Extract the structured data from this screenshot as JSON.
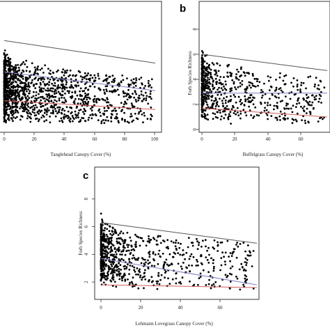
{
  "chart_data": [
    {
      "panel_label": "",
      "type": "scatter",
      "xlabel": "Tanglehead Canopy Cover (%)",
      "ylabel": "",
      "xlim": [
        0,
        100
      ],
      "ylim": [
        0,
        10
      ],
      "x_ticks": [
        "0",
        "20",
        "40",
        "60",
        "80",
        "100"
      ],
      "y_ticks": [],
      "point_count": 1400,
      "lines": [
        {
          "color": "#555555",
          "x": [
            0,
            100
          ],
          "y": [
            7.1,
            5.3
          ]
        },
        {
          "color": "#7c7cc4",
          "x": [
            0,
            100
          ],
          "y": [
            4.6,
            3.1
          ]
        },
        {
          "color": "#d05c5c",
          "x": [
            0,
            100
          ],
          "y": [
            2.3,
            1.6
          ]
        }
      ]
    },
    {
      "panel_label": "b",
      "type": "scatter",
      "xlabel": "Buffelgrass Canopy Cover (%)",
      "ylabel": "Forb Species Richness",
      "xlim": [
        0,
        70
      ],
      "ylim": [
        0,
        10
      ],
      "x_ticks": [
        "0",
        "20",
        "40",
        "60"
      ],
      "y_ticks": [
        "0",
        "2",
        "4",
        "6",
        "8"
      ],
      "point_count": 700,
      "lines": [
        {
          "color": "#555555",
          "x": [
            0,
            70
          ],
          "y": [
            6.0,
            4.7
          ]
        },
        {
          "color": "#7c7cc4",
          "x": [
            0,
            70
          ],
          "y": [
            2.9,
            2.9
          ]
        },
        {
          "color": "#d05c5c",
          "x": [
            0,
            70
          ],
          "y": [
            1.7,
            1.0
          ]
        }
      ]
    },
    {
      "panel_label": "c",
      "type": "scatter",
      "xlabel": "Lehmann Lovegrass Canopy Cover (%)",
      "ylabel": "Forb Species Richness",
      "xlim": [
        0,
        78
      ],
      "ylim": [
        1,
        10
      ],
      "x_ticks": [
        "0",
        "20",
        "40",
        "60"
      ],
      "y_ticks": [
        "2",
        "4",
        "6",
        "8"
      ],
      "point_count": 800,
      "lines": [
        {
          "color": "#555555",
          "x": [
            0,
            78
          ],
          "y": [
            6.3,
            4.8
          ]
        },
        {
          "color": "#7c7cc4",
          "x": [
            0,
            78
          ],
          "y": [
            3.7,
            1.8
          ]
        },
        {
          "color": "#d05c5c",
          "x": [
            0,
            78
          ],
          "y": [
            1.8,
            1.6
          ]
        }
      ]
    }
  ]
}
